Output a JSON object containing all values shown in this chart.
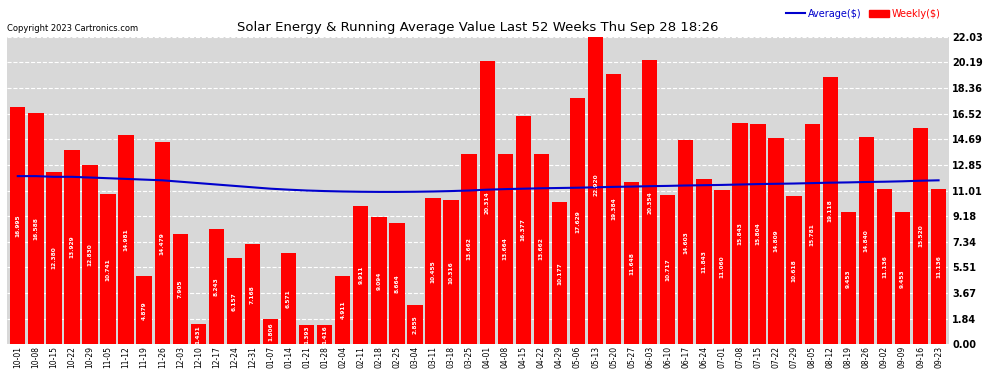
{
  "title": "Solar Energy & Running Average Value Last 52 Weeks Thu Sep 28 18:26",
  "copyright": "Copyright 2023 Cartronics.com",
  "legend_average": "Average($)",
  "legend_weekly": "Weekly($)",
  "bar_color": "#ff0000",
  "avg_line_color": "#0000cd",
  "background_color": "#ffffff",
  "plot_bg_color": "#d8d8d8",
  "grid_color": "#ffffff",
  "yticks_values": [
    0.0,
    1.84,
    3.67,
    5.51,
    7.34,
    9.18,
    11.01,
    12.85,
    14.69,
    16.52,
    18.36,
    20.19,
    22.03
  ],
  "ylabel_right": [
    "0.00",
    "1.84",
    "3.67",
    "5.51",
    "7.34",
    "9.18",
    "11.01",
    "12.85",
    "14.69",
    "16.52",
    "18.36",
    "20.19",
    "22.03"
  ],
  "categories": [
    "10-01",
    "10-08",
    "10-15",
    "10-22",
    "10-29",
    "11-05",
    "11-12",
    "11-19",
    "11-26",
    "12-03",
    "12-10",
    "12-17",
    "12-24",
    "12-31",
    "01-07",
    "01-14",
    "01-21",
    "01-28",
    "02-04",
    "02-11",
    "02-18",
    "02-25",
    "03-04",
    "03-11",
    "03-18",
    "03-25",
    "04-01",
    "04-08",
    "04-15",
    "04-22",
    "04-29",
    "05-06",
    "05-13",
    "05-20",
    "05-27",
    "06-03",
    "06-10",
    "06-17",
    "06-24",
    "07-01",
    "07-08",
    "07-15",
    "07-22",
    "07-29",
    "08-05",
    "08-12",
    "08-19",
    "08-26",
    "09-02",
    "09-09",
    "09-16",
    "09-23"
  ],
  "weekly_values": [
    16.995,
    16.588,
    12.38,
    13.929,
    12.83,
    10.741,
    14.981,
    4.879,
    14.479,
    7.905,
    1.431,
    8.243,
    6.157,
    7.168,
    1.806,
    6.571,
    1.393,
    1.416,
    4.911,
    9.911,
    9.094,
    8.664,
    2.855,
    10.455,
    10.316,
    13.662,
    20.314,
    13.664,
    16.377,
    13.662,
    10.177,
    17.629,
    22.92,
    19.384,
    11.648,
    20.354,
    10.717,
    14.603,
    11.843,
    11.06,
    15.843,
    15.804,
    14.809,
    10.618,
    15.781,
    19.118,
    9.453,
    14.84,
    11.136,
    9.453,
    15.52,
    11.136
  ],
  "avg_values": [
    12.05,
    12.05,
    12.0,
    12.0,
    11.95,
    11.9,
    11.85,
    11.8,
    11.75,
    11.65,
    11.55,
    11.45,
    11.35,
    11.25,
    11.15,
    11.08,
    11.02,
    10.98,
    10.95,
    10.93,
    10.92,
    10.92,
    10.93,
    10.95,
    10.98,
    11.02,
    11.08,
    11.12,
    11.15,
    11.18,
    11.2,
    11.22,
    11.25,
    11.28,
    11.3,
    11.33,
    11.35,
    11.38,
    11.4,
    11.42,
    11.45,
    11.48,
    11.5,
    11.52,
    11.55,
    11.58,
    11.6,
    11.63,
    11.65,
    11.68,
    11.72,
    11.75
  ]
}
